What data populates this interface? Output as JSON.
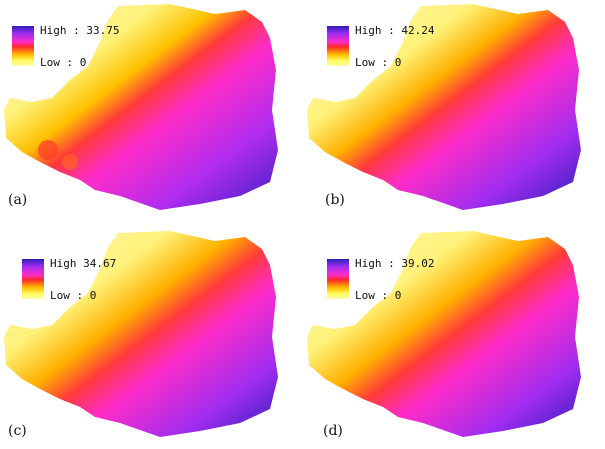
{
  "panels": [
    {
      "label": "(a)",
      "legend_high": "High : 33.75",
      "legend_low": "Low : 0"
    },
    {
      "label": "(b)",
      "legend_high": "High : 42.24",
      "legend_low": "Low : 0"
    },
    {
      "label": "(c)",
      "legend_high": "High 34.67",
      "legend_low": "Low : 0"
    },
    {
      "label": "(d)",
      "legend_high": "High : 39.02",
      "legend_low": "Low : 0"
    }
  ],
  "colors": {
    "high": "#2b1eb6",
    "mid_high": "#9a2cf0",
    "mid": "#ff2cc8",
    "mid_low": "#ff2a2a",
    "low_mid": "#ffc000",
    "low": "#fff9a8"
  }
}
